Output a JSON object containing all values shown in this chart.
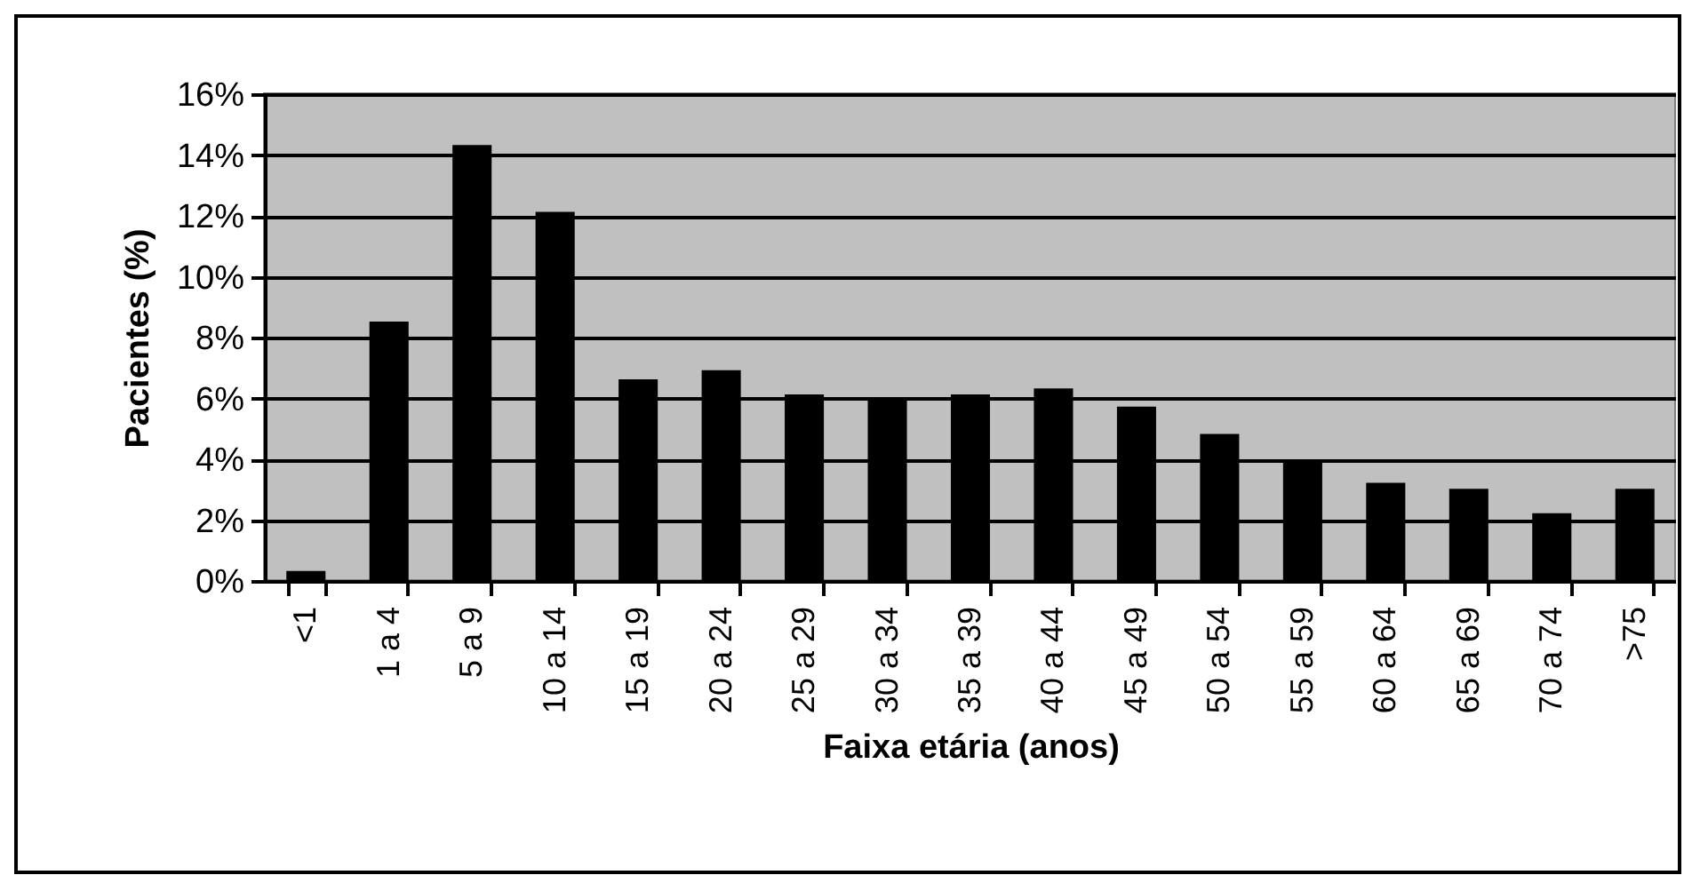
{
  "chart_data": {
    "type": "bar",
    "xlabel": "Faixa etária (anos)",
    "ylabel": "Pacientes (%)",
    "categories": [
      "<1",
      "1 a 4",
      "5 a 9",
      "10 a 14",
      "15 a 19",
      "20 a 24",
      "25 a 29",
      "30 a 34",
      "35 a 39",
      "40 a 44",
      "45 a 49",
      "50 a 54",
      "55 a 59",
      "60 a 64",
      "65 a 69",
      "70 a 74",
      ">75"
    ],
    "values": [
      0.3,
      8.5,
      14.3,
      12.1,
      6.6,
      6.9,
      6.1,
      6.0,
      6.1,
      6.3,
      5.7,
      4.8,
      3.9,
      3.2,
      3.0,
      2.2,
      3.0
    ],
    "color": "#000000",
    "ylim": [
      0,
      16
    ],
    "yticks": [
      {
        "value": 0,
        "label": "0%"
      },
      {
        "value": 2,
        "label": "2%"
      },
      {
        "value": 4,
        "label": "4%"
      },
      {
        "value": 6,
        "label": "6%"
      },
      {
        "value": 8,
        "label": "8%"
      },
      {
        "value": 10,
        "label": "10%"
      },
      {
        "value": 12,
        "label": "12%"
      },
      {
        "value": 14,
        "label": "14%"
      },
      {
        "value": 16,
        "label": "16%"
      }
    ],
    "grid": "y"
  }
}
